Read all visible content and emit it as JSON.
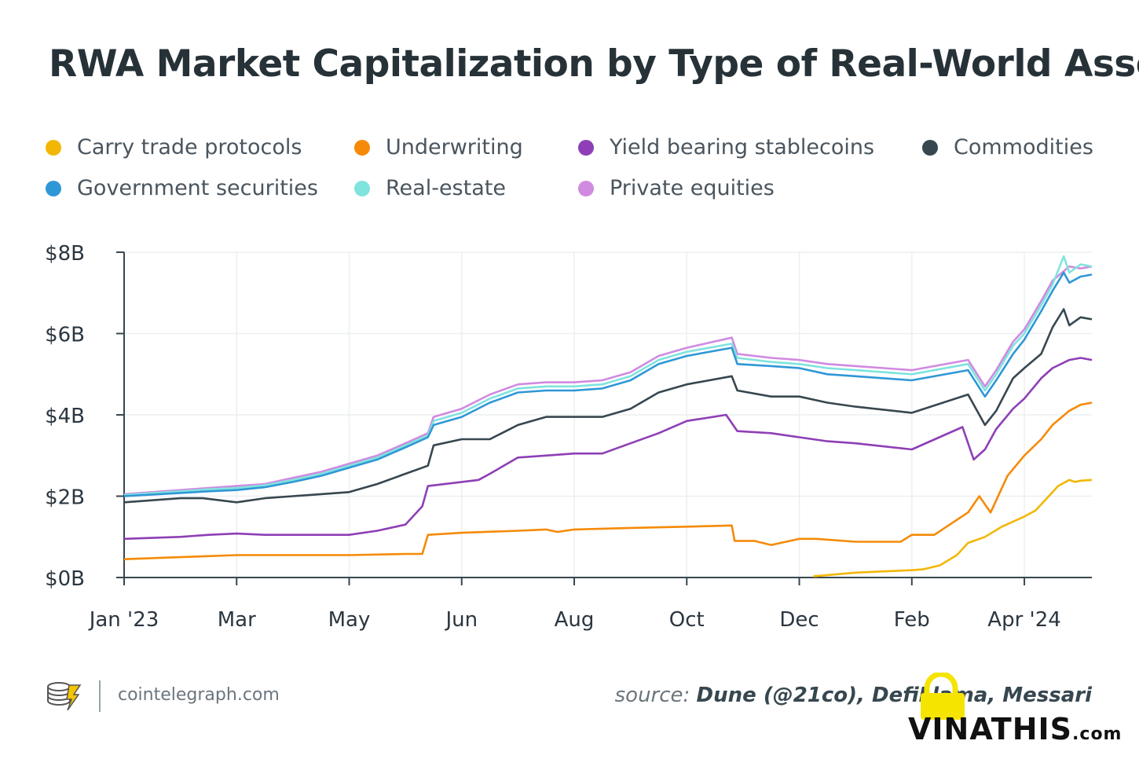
{
  "title": "RWA Market Capitalization by Type of Real-World Asset",
  "legend": [
    {
      "label": "Carry trade protocols",
      "color": "#f2b705"
    },
    {
      "label": "Underwriting",
      "color": "#f58a07"
    },
    {
      "label": "Yield bearing stablecoins",
      "color": "#8e3fb5"
    },
    {
      "label": "Commodities",
      "color": "#37474f"
    },
    {
      "label": "Government securities",
      "color": "#2f97d6"
    },
    {
      "label": "Real-estate",
      "color": "#7fe3de"
    },
    {
      "label": "Private equities",
      "color": "#d08ae0"
    }
  ],
  "footer": {
    "site": "cointelegraph.com",
    "source_label": "source: ",
    "source_value": "Dune (@21co), DefiLlama, Messari"
  },
  "watermark": {
    "text": "VINATHIS",
    "suffix": ".com"
  },
  "chart_data": {
    "type": "line",
    "title": "RWA Market Capitalization by Type of Real-World Asset",
    "xlabel": "",
    "ylabel": "",
    "x_unit": "months since Jan 2023",
    "xlim": [
      0,
      17.2
    ],
    "ylim": [
      0,
      8
    ],
    "y_ticks": [
      0,
      2,
      4,
      6,
      8
    ],
    "y_tick_labels": [
      "$0B",
      "$2B",
      "$4B",
      "$6B",
      "$8B"
    ],
    "x_ticks": [
      0,
      2,
      4,
      6,
      8,
      10,
      12,
      14,
      16
    ],
    "x_tick_labels": [
      "Jan '23",
      "Mar",
      "May",
      "Jun",
      "Aug",
      "Oct",
      "Dec",
      "Feb",
      "Apr '24"
    ],
    "grid": "vertical at x ticks, horizontal at y ticks",
    "series": [
      {
        "name": "Private equities",
        "color": "#d08ae0",
        "x": [
          0,
          1,
          1.5,
          2,
          2.5,
          3,
          3.5,
          4,
          4.5,
          5,
          5.4,
          5.5,
          6,
          6.5,
          7,
          7.5,
          8,
          8.5,
          9,
          9.5,
          10,
          10.8,
          10.9,
          11.5,
          12,
          12.5,
          13,
          14,
          15,
          15.3,
          15.5,
          15.8,
          16,
          16.3,
          16.5,
          16.8,
          17,
          17.2
        ],
        "y": [
          2.05,
          2.15,
          2.2,
          2.25,
          2.3,
          2.45,
          2.6,
          2.8,
          3.0,
          3.3,
          3.55,
          3.95,
          4.15,
          4.5,
          4.75,
          4.8,
          4.8,
          4.85,
          5.05,
          5.45,
          5.65,
          5.9,
          5.5,
          5.4,
          5.35,
          5.25,
          5.2,
          5.1,
          5.35,
          4.7,
          5.1,
          5.8,
          6.1,
          6.8,
          7.3,
          7.65,
          7.6,
          7.65
        ]
      },
      {
        "name": "Real-estate",
        "color": "#7fe3de",
        "x": [
          0,
          1,
          1.5,
          2,
          2.5,
          3,
          3.5,
          4,
          4.5,
          5,
          5.4,
          5.5,
          6,
          6.5,
          7,
          7.5,
          8,
          8.5,
          9,
          9.5,
          10,
          10.8,
          10.9,
          11.5,
          12,
          12.5,
          13,
          14,
          15,
          15.3,
          15.5,
          15.8,
          16,
          16.3,
          16.5,
          16.7,
          16.8,
          17,
          17.2
        ],
        "y": [
          2.03,
          2.12,
          2.17,
          2.2,
          2.27,
          2.4,
          2.55,
          2.75,
          2.95,
          3.25,
          3.5,
          3.85,
          4.05,
          4.4,
          4.65,
          4.7,
          4.7,
          4.75,
          4.95,
          5.35,
          5.55,
          5.75,
          5.4,
          5.3,
          5.25,
          5.15,
          5.1,
          5.0,
          5.25,
          4.6,
          5.0,
          5.7,
          6.0,
          6.7,
          7.2,
          7.9,
          7.5,
          7.7,
          7.65
        ]
      },
      {
        "name": "Government securities",
        "color": "#2f97d6",
        "x": [
          0,
          1,
          1.5,
          2,
          2.5,
          3,
          3.5,
          4,
          4.5,
          5,
          5.4,
          5.5,
          6,
          6.5,
          7,
          7.5,
          8,
          8.5,
          9,
          9.5,
          10,
          10.8,
          10.9,
          11.5,
          12,
          12.5,
          13,
          14,
          15,
          15.3,
          15.5,
          15.8,
          16,
          16.3,
          16.5,
          16.7,
          16.8,
          17,
          17.2
        ],
        "y": [
          2.0,
          2.08,
          2.12,
          2.15,
          2.22,
          2.35,
          2.5,
          2.7,
          2.9,
          3.2,
          3.45,
          3.75,
          3.95,
          4.3,
          4.55,
          4.6,
          4.6,
          4.65,
          4.85,
          5.25,
          5.45,
          5.65,
          5.25,
          5.2,
          5.15,
          5.0,
          4.95,
          4.85,
          5.1,
          4.45,
          4.85,
          5.5,
          5.85,
          6.55,
          7.05,
          7.5,
          7.25,
          7.4,
          7.45
        ]
      },
      {
        "name": "Commodities",
        "color": "#37474f",
        "x": [
          0,
          1,
          1.4,
          2,
          2.5,
          3,
          3.5,
          4,
          4.5,
          5,
          5.4,
          5.5,
          6,
          6.5,
          7,
          7.5,
          8,
          8.5,
          9,
          9.5,
          10,
          10.8,
          10.9,
          11.5,
          12,
          12.5,
          13,
          14,
          15,
          15.3,
          15.5,
          15.8,
          16,
          16.3,
          16.5,
          16.7,
          16.8,
          17,
          17.2
        ],
        "y": [
          1.85,
          1.95,
          1.95,
          1.85,
          1.95,
          2.0,
          2.05,
          2.1,
          2.3,
          2.55,
          2.75,
          3.25,
          3.4,
          3.4,
          3.75,
          3.95,
          3.95,
          3.95,
          4.15,
          4.55,
          4.75,
          4.95,
          4.6,
          4.45,
          4.45,
          4.3,
          4.2,
          4.05,
          4.5,
          3.75,
          4.1,
          4.9,
          5.15,
          5.5,
          6.15,
          6.6,
          6.2,
          6.4,
          6.35
        ]
      },
      {
        "name": "Yield bearing stablecoins",
        "color": "#8e3fb5",
        "x": [
          0,
          1,
          1.5,
          2,
          2.5,
          3,
          3.5,
          4,
          4.5,
          5,
          5.3,
          5.4,
          6,
          6.3,
          6.5,
          7,
          7.5,
          8,
          8.5,
          9,
          9.5,
          10,
          10.7,
          10.9,
          11.5,
          12,
          12.5,
          13,
          14,
          14.9,
          15.1,
          15.3,
          15.5,
          15.8,
          16,
          16.3,
          16.5,
          16.8,
          17,
          17.2
        ],
        "y": [
          0.95,
          1.0,
          1.05,
          1.08,
          1.05,
          1.05,
          1.05,
          1.05,
          1.15,
          1.3,
          1.75,
          2.25,
          2.35,
          2.4,
          2.55,
          2.95,
          3.0,
          3.05,
          3.05,
          3.3,
          3.55,
          3.85,
          4.0,
          3.6,
          3.55,
          3.45,
          3.35,
          3.3,
          3.15,
          3.7,
          2.9,
          3.15,
          3.65,
          4.15,
          4.4,
          4.9,
          5.15,
          5.35,
          5.4,
          5.35
        ]
      },
      {
        "name": "Underwriting",
        "color": "#f58a07",
        "x": [
          0,
          1,
          2,
          3,
          4,
          5,
          5.3,
          5.4,
          6,
          7,
          7.5,
          7.7,
          8,
          9,
          10,
          10.8,
          10.85,
          11.2,
          11.5,
          12,
          12.3,
          13,
          13.8,
          14,
          14.2,
          14.4,
          15,
          15.2,
          15.4,
          15.7,
          16,
          16.3,
          16.5,
          16.8,
          17,
          17.2
        ],
        "y": [
          0.45,
          0.5,
          0.55,
          0.55,
          0.55,
          0.58,
          0.58,
          1.05,
          1.1,
          1.15,
          1.18,
          1.12,
          1.18,
          1.22,
          1.25,
          1.28,
          0.9,
          0.9,
          0.8,
          0.95,
          0.95,
          0.88,
          0.88,
          1.05,
          1.05,
          1.05,
          1.6,
          2.0,
          1.6,
          2.5,
          3.0,
          3.4,
          3.75,
          4.1,
          4.25,
          4.3
        ]
      },
      {
        "name": "Carry trade protocols",
        "color": "#f2b705",
        "x": [
          12.25,
          12.5,
          13,
          13.5,
          14,
          14.2,
          14.5,
          14.8,
          15,
          15.3,
          15.6,
          16,
          16.2,
          16.4,
          16.6,
          16.8,
          16.9,
          17,
          17.2
        ],
        "y": [
          0.03,
          0.06,
          0.12,
          0.15,
          0.18,
          0.2,
          0.3,
          0.55,
          0.85,
          1.0,
          1.25,
          1.5,
          1.65,
          1.95,
          2.25,
          2.4,
          2.35,
          2.38,
          2.4
        ]
      }
    ]
  }
}
